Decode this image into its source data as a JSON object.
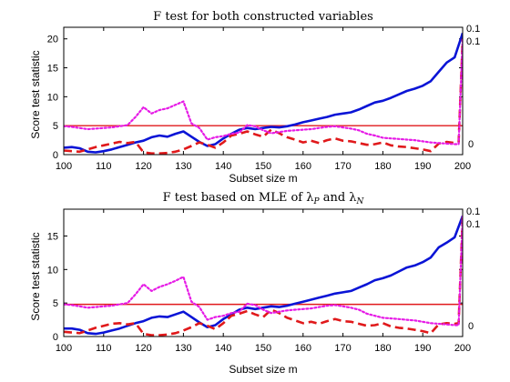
{
  "chart_data": [
    {
      "type": "line",
      "title": "F test for both constructed variables",
      "xlabel": "Subset size m",
      "ylabel": "Score test statistic",
      "xlim": [
        100,
        200
      ],
      "ylim": [
        0,
        22
      ],
      "xticks": [
        "100",
        "110",
        "120",
        "130",
        "140",
        "150",
        "160",
        "170",
        "180",
        "190",
        "200"
      ],
      "yticks": [
        "0",
        "5",
        "10",
        "15",
        "20"
      ],
      "grid": false,
      "annotations": [
        "0.1",
        "0.1",
        "0"
      ],
      "threshold": {
        "value": 5.0,
        "color": "#e0191b"
      },
      "series": [
        {
          "color": "#0a14d6",
          "style": "solid",
          "x": [
            100,
            102,
            104,
            106,
            108,
            110,
            112,
            114,
            116,
            118,
            120,
            122,
            124,
            126,
            128,
            130,
            132,
            134,
            136,
            138,
            140,
            142,
            144,
            146,
            148,
            150,
            152,
            154,
            156,
            158,
            160,
            162,
            164,
            166,
            168,
            170,
            172,
            174,
            176,
            178,
            180,
            182,
            184,
            186,
            188,
            190,
            192,
            194,
            196,
            198,
            200
          ],
          "values": [
            1.2,
            1.3,
            1.1,
            0.5,
            0.4,
            0.6,
            0.9,
            1.3,
            1.7,
            2.1,
            2.4,
            3.0,
            3.3,
            3.1,
            3.6,
            4.0,
            3.1,
            2.2,
            1.5,
            1.8,
            2.8,
            3.6,
            4.3,
            4.6,
            4.4,
            4.6,
            4.8,
            4.7,
            4.9,
            5.2,
            5.6,
            5.9,
            6.2,
            6.5,
            6.9,
            7.1,
            7.3,
            7.8,
            8.4,
            9.0,
            9.3,
            9.8,
            10.4,
            11.0,
            11.4,
            11.9,
            12.7,
            14.3,
            15.9,
            16.8,
            21.0
          ]
        },
        {
          "color": "#e0191b",
          "style": "dashed",
          "x": [
            100,
            102,
            104,
            106,
            108,
            110,
            112,
            114,
            116,
            118,
            120,
            122,
            124,
            126,
            128,
            130,
            132,
            134,
            136,
            138,
            140,
            142,
            144,
            146,
            148,
            150,
            152,
            154,
            156,
            158,
            160,
            162,
            164,
            166,
            168,
            170,
            172,
            174,
            176,
            178,
            180,
            182,
            184,
            186,
            188,
            190,
            192,
            194,
            196,
            198,
            199,
            200
          ],
          "values": [
            0.7,
            0.6,
            0.5,
            0.9,
            1.3,
            1.6,
            1.9,
            2.2,
            2.0,
            2.2,
            0.4,
            0.2,
            0.2,
            0.3,
            0.5,
            0.9,
            1.5,
            2.1,
            1.7,
            1.2,
            2.1,
            3.3,
            3.6,
            4.0,
            3.5,
            3.1,
            4.3,
            3.7,
            3.0,
            2.6,
            2.1,
            2.4,
            2.0,
            2.5,
            2.8,
            2.4,
            2.3,
            2.0,
            1.7,
            1.8,
            2.1,
            1.6,
            1.4,
            1.3,
            1.1,
            0.9,
            0.6,
            1.9,
            2.2,
            2.0,
            2.1,
            20.0
          ]
        },
        {
          "color": "#e61be6",
          "style": "dotted",
          "x": [
            100,
            102,
            104,
            106,
            108,
            110,
            112,
            114,
            116,
            118,
            120,
            122,
            124,
            126,
            128,
            130,
            132,
            134,
            136,
            138,
            140,
            142,
            144,
            146,
            148,
            150,
            152,
            154,
            156,
            158,
            160,
            162,
            164,
            166,
            168,
            170,
            172,
            174,
            176,
            178,
            180,
            182,
            184,
            186,
            188,
            190,
            192,
            194,
            196,
            198,
            199,
            200
          ],
          "values": [
            4.9,
            4.8,
            4.6,
            4.4,
            4.5,
            4.6,
            4.7,
            4.9,
            5.1,
            6.5,
            8.2,
            7.1,
            7.7,
            8.0,
            8.6,
            9.2,
            5.4,
            4.6,
            2.6,
            3.0,
            3.2,
            3.6,
            3.8,
            5.1,
            4.9,
            4.2,
            3.7,
            3.9,
            4.1,
            4.2,
            4.3,
            4.4,
            4.6,
            4.8,
            4.9,
            4.7,
            4.5,
            4.2,
            3.6,
            3.3,
            2.9,
            2.8,
            2.7,
            2.6,
            2.5,
            2.3,
            2.1,
            2.0,
            1.9,
            1.8,
            1.8,
            20.0
          ]
        }
      ]
    },
    {
      "type": "line",
      "title": "F test based on MLE of λP and λN",
      "xlabel": "Subset size m",
      "ylabel": "Score test statistic",
      "xlim": [
        100,
        200
      ],
      "ylim": [
        0,
        19
      ],
      "xticks": [
        "100",
        "110",
        "120",
        "130",
        "140",
        "150",
        "160",
        "170",
        "180",
        "190",
        "200"
      ],
      "yticks": [
        "0",
        "5",
        "10",
        "15"
      ],
      "grid": false,
      "annotations": [
        "0.1",
        "0.1",
        "0"
      ],
      "threshold": {
        "value": 4.8,
        "color": "#e0191b"
      },
      "series": [
        {
          "color": "#0a14d6",
          "style": "solid",
          "x": [
            100,
            102,
            104,
            106,
            108,
            110,
            112,
            114,
            116,
            118,
            120,
            122,
            124,
            126,
            128,
            130,
            132,
            134,
            136,
            138,
            140,
            142,
            144,
            146,
            148,
            150,
            152,
            154,
            156,
            158,
            160,
            162,
            164,
            166,
            168,
            170,
            172,
            174,
            176,
            178,
            180,
            182,
            184,
            186,
            188,
            190,
            192,
            194,
            196,
            198,
            200
          ],
          "values": [
            1.2,
            1.2,
            1.0,
            0.5,
            0.4,
            0.6,
            0.9,
            1.2,
            1.6,
            2.0,
            2.3,
            2.8,
            3.0,
            2.9,
            3.3,
            3.7,
            2.9,
            2.1,
            1.4,
            1.7,
            2.6,
            3.3,
            4.0,
            4.3,
            4.1,
            4.3,
            4.5,
            4.4,
            4.6,
            4.9,
            5.2,
            5.5,
            5.8,
            6.1,
            6.4,
            6.6,
            6.8,
            7.3,
            7.8,
            8.4,
            8.7,
            9.1,
            9.7,
            10.3,
            10.6,
            11.1,
            11.8,
            13.3,
            14.0,
            14.8,
            18.0
          ]
        },
        {
          "color": "#e0191b",
          "style": "dashed",
          "x": [
            100,
            102,
            104,
            106,
            108,
            110,
            112,
            114,
            116,
            118,
            120,
            122,
            124,
            126,
            128,
            130,
            132,
            134,
            136,
            138,
            140,
            142,
            144,
            146,
            148,
            150,
            152,
            154,
            156,
            158,
            160,
            162,
            164,
            166,
            168,
            170,
            172,
            174,
            176,
            178,
            180,
            182,
            184,
            186,
            188,
            190,
            192,
            194,
            196,
            198,
            199,
            200
          ],
          "values": [
            0.7,
            0.6,
            0.5,
            0.9,
            1.3,
            1.6,
            1.9,
            2.0,
            1.8,
            2.0,
            0.4,
            0.2,
            0.2,
            0.3,
            0.5,
            0.9,
            1.4,
            2.0,
            1.6,
            1.1,
            2.0,
            3.1,
            3.4,
            3.8,
            3.3,
            2.9,
            4.0,
            3.5,
            2.8,
            2.4,
            2.0,
            2.2,
            1.9,
            2.3,
            2.6,
            2.3,
            2.2,
            1.9,
            1.6,
            1.7,
            2.0,
            1.5,
            1.3,
            1.2,
            1.0,
            0.8,
            0.5,
            1.8,
            2.0,
            1.9,
            2.0,
            18.0
          ]
        },
        {
          "color": "#e61be6",
          "style": "dotted",
          "x": [
            100,
            102,
            104,
            106,
            108,
            110,
            112,
            114,
            116,
            118,
            120,
            122,
            124,
            126,
            128,
            130,
            132,
            134,
            136,
            138,
            140,
            142,
            144,
            146,
            148,
            150,
            152,
            154,
            156,
            158,
            160,
            162,
            164,
            166,
            168,
            170,
            172,
            174,
            176,
            178,
            180,
            182,
            184,
            186,
            188,
            190,
            192,
            194,
            196,
            198,
            199,
            200
          ],
          "values": [
            4.8,
            4.7,
            4.5,
            4.3,
            4.4,
            4.5,
            4.6,
            4.8,
            5.0,
            6.3,
            7.8,
            6.8,
            7.4,
            7.8,
            8.3,
            8.9,
            5.2,
            4.4,
            2.5,
            2.9,
            3.1,
            3.5,
            3.7,
            4.9,
            4.7,
            4.0,
            3.5,
            3.7,
            3.9,
            4.0,
            4.1,
            4.2,
            4.4,
            4.6,
            4.7,
            4.5,
            4.3,
            4.0,
            3.4,
            3.1,
            2.8,
            2.7,
            2.6,
            2.5,
            2.4,
            2.2,
            2.0,
            1.9,
            1.8,
            1.7,
            1.7,
            18.0
          ]
        }
      ]
    }
  ]
}
